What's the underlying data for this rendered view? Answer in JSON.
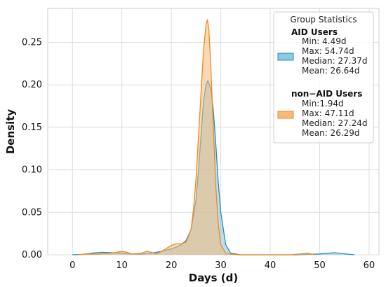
{
  "chart_data": {
    "type": "area",
    "xlabel": "Days (d)",
    "ylabel": "Density",
    "xlim": [
      -5,
      62
    ],
    "ylim": [
      0,
      0.29
    ],
    "xticks": [
      0,
      10,
      20,
      30,
      40,
      50,
      60
    ],
    "yticks": [
      0.0,
      0.05,
      0.1,
      0.15,
      0.2,
      0.25
    ],
    "xtick_labels": [
      "0",
      "10",
      "20",
      "30",
      "40",
      "50",
      "60"
    ],
    "ytick_labels": [
      "0.00",
      "0.05",
      "0.10",
      "0.15",
      "0.20",
      "0.25"
    ],
    "grid": true,
    "legend": {
      "title": "Group Statistics",
      "placement": "top-right"
    },
    "series": [
      {
        "name": "AID Users",
        "color": "#1f8fc8",
        "fill": "#8fc6e0",
        "stats": [
          "Min: 4.49d",
          "Max: 54.74d",
          "Median: 27.37d",
          "Mean: 26.64d"
        ],
        "x": [
          0,
          2,
          4,
          6,
          8,
          10,
          12,
          14,
          16,
          18,
          20,
          21,
          22,
          23,
          24,
          25,
          25.5,
          26,
          26.5,
          27,
          27.4,
          28,
          28.5,
          29,
          29.5,
          30,
          31,
          32,
          34,
          40,
          45,
          50,
          53,
          55,
          57
        ],
        "y": [
          0,
          0.0005,
          0.002,
          0.003,
          0.0025,
          0.002,
          0.001,
          0.0008,
          0.002,
          0.004,
          0.007,
          0.009,
          0.012,
          0.017,
          0.03,
          0.065,
          0.1,
          0.14,
          0.18,
          0.2,
          0.205,
          0.195,
          0.17,
          0.13,
          0.085,
          0.05,
          0.012,
          0.002,
          0,
          0,
          0,
          0.001,
          0.0025,
          0.0012,
          0
        ]
      },
      {
        "name": "non−AID Users",
        "color": "#f28b1e",
        "fill": "#f5b97a",
        "stats": [
          "Min:1.94d",
          "Max: 47.11d",
          "Median: 27.24d",
          "Mean: 26.29d"
        ],
        "x": [
          1,
          3,
          5,
          8,
          10,
          11,
          12,
          14,
          15,
          16,
          17,
          18,
          20,
          21,
          22,
          23,
          24,
          24.5,
          25,
          25.5,
          26,
          26.5,
          27,
          27.3,
          27.6,
          28,
          28.5,
          29,
          29.5,
          30,
          31,
          32,
          34,
          44,
          46,
          47.5,
          49
        ],
        "y": [
          0,
          0.001,
          0.0008,
          0.002,
          0.004,
          0.003,
          0.001,
          0.002,
          0.004,
          0.003,
          0.001,
          0.004,
          0.011,
          0.013,
          0.013,
          0.015,
          0.03,
          0.055,
          0.09,
          0.14,
          0.19,
          0.24,
          0.27,
          0.277,
          0.265,
          0.22,
          0.15,
          0.08,
          0.035,
          0.012,
          0.002,
          0.0005,
          0,
          0,
          0.001,
          0.002,
          0
        ]
      }
    ]
  }
}
